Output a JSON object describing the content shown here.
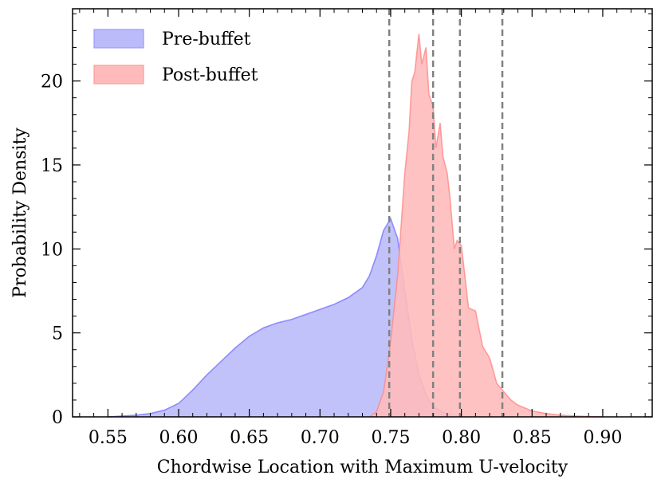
{
  "chart_data": {
    "type": "area",
    "xlabel": "Chordwise Location with Maximum U-velocity",
    "ylabel": "Probability Density",
    "xlim": [
      0.525,
      0.935
    ],
    "ylim": [
      0,
      24.3
    ],
    "xticks": [
      0.55,
      0.6,
      0.65,
      0.7,
      0.75,
      0.8,
      0.85,
      0.9
    ],
    "xtick_labels": [
      "0.55",
      "0.60",
      "0.65",
      "0.70",
      "0.75",
      "0.80",
      "0.85",
      "0.90"
    ],
    "yticks": [
      0,
      5,
      10,
      15,
      20
    ],
    "ytick_labels": [
      "0",
      "5",
      "10",
      "15",
      "20"
    ],
    "grid": false,
    "legend_position": "top-left",
    "vlines": [
      0.749,
      0.78,
      0.799,
      0.829
    ],
    "vline_color": "#808080",
    "series": [
      {
        "name": "Pre-buffet",
        "color": "#7777ff",
        "fill_color": "#bbbbfa",
        "x": [
          0.55,
          0.56,
          0.57,
          0.58,
          0.59,
          0.6,
          0.61,
          0.62,
          0.63,
          0.64,
          0.65,
          0.66,
          0.67,
          0.68,
          0.69,
          0.7,
          0.71,
          0.72,
          0.73,
          0.735,
          0.74,
          0.745,
          0.75,
          0.755,
          0.76,
          0.765,
          0.77,
          0.775,
          0.78,
          0.79,
          0.8
        ],
        "y": [
          0.0,
          0.05,
          0.1,
          0.2,
          0.4,
          0.8,
          1.6,
          2.5,
          3.3,
          4.1,
          4.8,
          5.3,
          5.6,
          5.8,
          6.1,
          6.4,
          6.7,
          7.1,
          7.7,
          8.4,
          9.6,
          11.1,
          11.8,
          10.6,
          7.5,
          4.6,
          2.5,
          1.3,
          0.6,
          0.15,
          0.0
        ]
      },
      {
        "name": "Post-buffet",
        "color": "#ff8888",
        "fill_color": "#ffbbbb",
        "x": [
          0.735,
          0.74,
          0.745,
          0.75,
          0.755,
          0.76,
          0.763,
          0.765,
          0.767,
          0.77,
          0.772,
          0.775,
          0.777,
          0.78,
          0.782,
          0.785,
          0.787,
          0.79,
          0.792,
          0.795,
          0.797,
          0.8,
          0.803,
          0.805,
          0.81,
          0.815,
          0.82,
          0.825,
          0.83,
          0.835,
          0.84,
          0.85,
          0.86,
          0.87,
          0.88,
          0.89,
          0.9
        ],
        "y": [
          0.0,
          0.3,
          1.5,
          4.5,
          8.5,
          14.5,
          17.0,
          20.0,
          20.5,
          22.8,
          21.0,
          22.0,
          19.2,
          18.5,
          16.0,
          17.5,
          15.5,
          14.5,
          13.0,
          10.0,
          10.5,
          10.2,
          8.0,
          6.5,
          6.3,
          4.2,
          3.5,
          2.0,
          1.5,
          1.0,
          0.7,
          0.35,
          0.2,
          0.1,
          0.05,
          0.02,
          0.0
        ]
      }
    ]
  },
  "legend": {
    "items": [
      {
        "label": "Pre-buffet",
        "color": "#bbbbfa",
        "border": "#9999ff"
      },
      {
        "label": "Post-buffet",
        "color": "#ffbbbb",
        "border": "#ff9999"
      }
    ]
  }
}
